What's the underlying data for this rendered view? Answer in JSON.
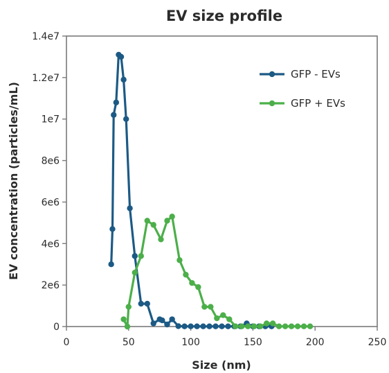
{
  "chart_data": {
    "type": "line",
    "title": "EV size profile",
    "xlabel": "Size (nm)",
    "ylabel": "EV concentration (particles/mL)",
    "xlim": [
      0,
      250
    ],
    "ylim": [
      0,
      14000000
    ],
    "x_ticks": [
      0,
      50,
      100,
      150,
      200,
      250
    ],
    "x_tick_labels": [
      "0",
      "50",
      "100",
      "150",
      "200",
      "250"
    ],
    "y_ticks": [
      0,
      2000000,
      4000000,
      6000000,
      8000000,
      10000000,
      12000000,
      14000000
    ],
    "y_tick_labels": [
      "0",
      "2e6",
      "4e6",
      "6e6",
      "8e6",
      "1e7",
      "1.2e7",
      "1.4e7"
    ],
    "grid": false,
    "legend_position": "top-right",
    "series": [
      {
        "name": "GFP - EVs",
        "color": "#1c5a85",
        "x": [
          36,
          37,
          38,
          40,
          42,
          44,
          46,
          48,
          51,
          55,
          60,
          65,
          70,
          75,
          77,
          81,
          85,
          90,
          95,
          100,
          105,
          110,
          115,
          120,
          125,
          130,
          135,
          140,
          145,
          150,
          155,
          160,
          165
        ],
        "y": [
          3000000,
          4700000,
          10200000,
          10800000,
          13100000,
          13000000,
          11900000,
          10000000,
          5700000,
          3400000,
          1100000,
          1100000,
          150000,
          350000,
          300000,
          100000,
          350000,
          20000,
          10000,
          10000,
          10000,
          10000,
          10000,
          10000,
          10000,
          10000,
          10000,
          10000,
          150000,
          10000,
          10000,
          10000,
          10000
        ]
      },
      {
        "name": "GFP + EVs",
        "color": "#4caf4a",
        "x": [
          46,
          49,
          50,
          55,
          60,
          65,
          70,
          76,
          81,
          85,
          91,
          96,
          101,
          106,
          111,
          116,
          121,
          126,
          131,
          136,
          141,
          146,
          151,
          156,
          161,
          166,
          171,
          176,
          181,
          186,
          191,
          196
        ],
        "y": [
          350000,
          0,
          950000,
          2600000,
          3400000,
          5100000,
          4900000,
          4200000,
          5100000,
          5300000,
          3200000,
          2500000,
          2100000,
          1900000,
          950000,
          950000,
          400000,
          550000,
          350000,
          10000,
          10000,
          10000,
          10000,
          10000,
          150000,
          150000,
          10000,
          10000,
          10000,
          10000,
          10000,
          10000
        ]
      }
    ]
  }
}
